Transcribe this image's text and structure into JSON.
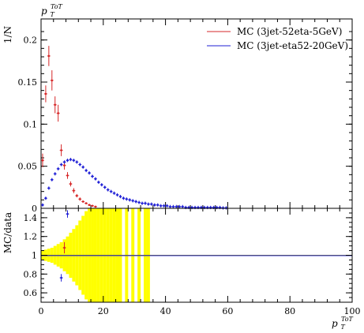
{
  "chart_data": [
    {
      "panel": "main",
      "type": "scatter",
      "title": "",
      "top_label": "p_T^{ToT}",
      "ylabel": "1/N",
      "xlim": [
        0,
        100
      ],
      "ylim": [
        0,
        0.225
      ],
      "y_ticks": [
        "0",
        "0.05",
        "0.1",
        "0.15",
        "0.2"
      ],
      "legend_position": "top-right",
      "series": [
        {
          "name": "MC (3jet-52eta-5GeV)",
          "color": "#d62728",
          "x": [
            0.5,
            1.5,
            2.5,
            3.5,
            4.5,
            5.5,
            6.5,
            7.5,
            8.5,
            9.5,
            10.5,
            11.5,
            12.5,
            13.5,
            14.5,
            15.5,
            16.5,
            17.5
          ],
          "y": [
            0.057,
            0.136,
            0.181,
            0.152,
            0.123,
            0.113,
            0.069,
            0.051,
            0.039,
            0.029,
            0.021,
            0.015,
            0.011,
            0.008,
            0.006,
            0.004,
            0.003,
            0.002
          ],
          "err": [
            0.008,
            0.01,
            0.012,
            0.012,
            0.01,
            0.01,
            0.007,
            0.005,
            0.004,
            0.003,
            0.003,
            0.002,
            0.002,
            0.001,
            0.001,
            0.001,
            0.001,
            0.001
          ]
        },
        {
          "name": "MC (3jet-eta52-20GeV)",
          "color": "#1f1fd6",
          "x": [
            0.5,
            1.5,
            2.5,
            3.5,
            4.5,
            5.5,
            6.5,
            7.5,
            8.5,
            9.5,
            10.5,
            11.5,
            12.5,
            13.5,
            14.5,
            15.5,
            16.5,
            17.5,
            18.5,
            19.5,
            20.5,
            21.5,
            22.5,
            23.5,
            24.5,
            25.5,
            26.5,
            27.5,
            28.5,
            29.5,
            30.5,
            31.5,
            32.5,
            33.5,
            34.5,
            35.5,
            36.5,
            37.5,
            38.5,
            39.5,
            40.5,
            41.5,
            42.5,
            43.5,
            44.5,
            45.5,
            46.5,
            47.5,
            48.5,
            49.5,
            50.5,
            51.5,
            52.5,
            53.5,
            54.5,
            55.5,
            56.5,
            57.5,
            58.5,
            59.5
          ],
          "y": [
            0.004,
            0.012,
            0.024,
            0.034,
            0.041,
            0.047,
            0.052,
            0.055,
            0.057,
            0.058,
            0.057,
            0.055,
            0.052,
            0.049,
            0.045,
            0.042,
            0.038,
            0.035,
            0.031,
            0.028,
            0.025,
            0.022,
            0.02,
            0.018,
            0.016,
            0.014,
            0.012,
            0.011,
            0.01,
            0.009,
            0.008,
            0.007,
            0.006,
            0.006,
            0.005,
            0.005,
            0.004,
            0.004,
            0.003,
            0.003,
            0.003,
            0.002,
            0.002,
            0.002,
            0.002,
            0.002,
            0.001,
            0.001,
            0.001,
            0.001,
            0.001,
            0.001,
            0.001,
            0.001,
            0.001,
            0.001,
            0.001,
            0.001,
            0.0005,
            0.0005
          ],
          "err": 0.002
        }
      ]
    },
    {
      "panel": "ratio",
      "type": "scatter",
      "ylabel": "MC/data",
      "xlabel": "p_T^{ToT}",
      "xlim": [
        0,
        100
      ],
      "ylim": [
        0.5,
        1.5
      ],
      "x_ticks": [
        "0",
        "20",
        "40",
        "60",
        "80",
        "100"
      ],
      "y_ticks": [
        "0.6",
        "0.8",
        "1",
        "1.2",
        "1.4"
      ],
      "band_color": "#ffff00",
      "band": {
        "x_edges": [
          0,
          1,
          2,
          3,
          4,
          5,
          6,
          7,
          8,
          9,
          10,
          11,
          12,
          13,
          14,
          15,
          16,
          17,
          18,
          19,
          20,
          21,
          22,
          23,
          24,
          25,
          26,
          27,
          28,
          29,
          30,
          31,
          32,
          33,
          34,
          35
        ],
        "half_width": [
          0.05,
          0.06,
          0.07,
          0.08,
          0.1,
          0.12,
          0.14,
          0.17,
          0.2,
          0.24,
          0.28,
          0.32,
          0.37,
          0.42,
          0.47,
          0.52,
          0.6,
          0.7,
          0.8,
          0.9,
          1.0,
          1.0,
          1.0,
          1.0,
          1.0,
          1.0,
          1.0,
          1.0,
          1.0,
          1.0,
          1.0,
          1.0,
          1.0,
          1.0,
          1.0
        ],
        "gaps": [
          26,
          28,
          30,
          32
        ]
      },
      "series": [
        {
          "name": "MC (3jet-52eta-5GeV)",
          "color": "#d62728",
          "x": [
            7.5
          ],
          "y": [
            1.08
          ],
          "err": [
            0.06
          ]
        },
        {
          "name": "MC (3jet-eta52-20GeV)",
          "color": "#1f1fd6",
          "x": [
            6.5,
            8.5
          ],
          "y": [
            0.76,
            1.44
          ],
          "err": [
            0.04,
            0.04
          ]
        }
      ],
      "reference_line": 1.0
    }
  ]
}
